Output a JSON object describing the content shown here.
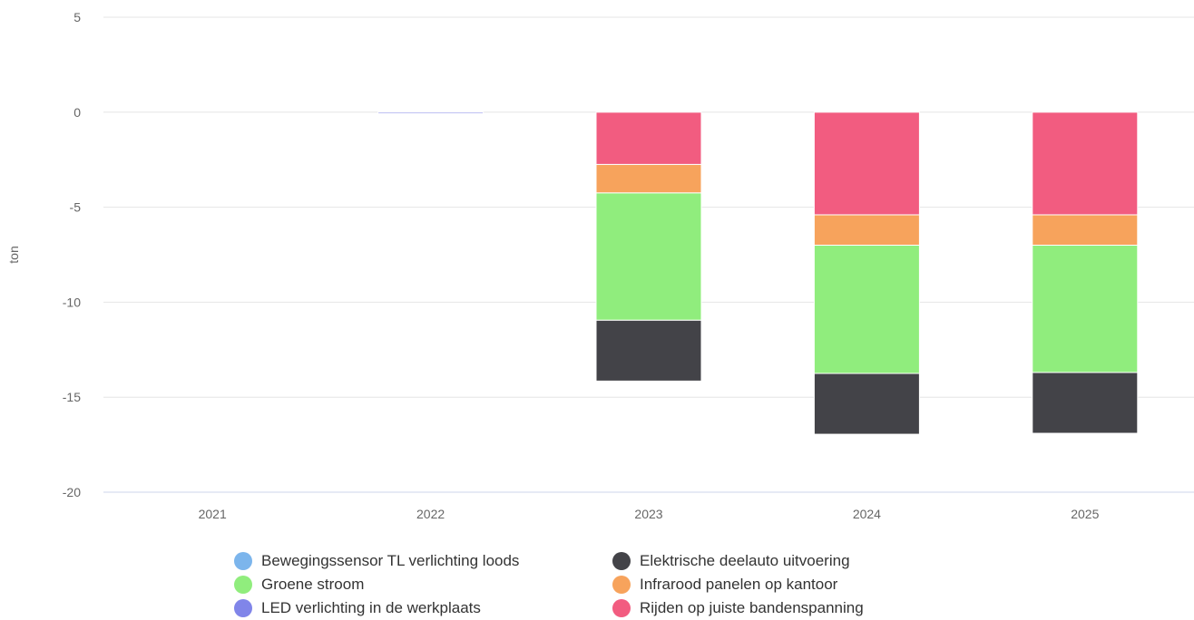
{
  "chart_data": {
    "type": "bar",
    "stacked": true,
    "ylabel": "ton",
    "ylim": [
      -20,
      5
    ],
    "yticks": [
      5,
      0,
      -5,
      -10,
      -15,
      -20
    ],
    "categories": [
      "2021",
      "2022",
      "2023",
      "2024",
      "2025"
    ],
    "grid": true,
    "legend_position": "bottom",
    "series": [
      {
        "name": "Rijden op juiste bandenspanning",
        "color": "#f25c80",
        "values": [
          0,
          0,
          -2.75,
          -5.4,
          -5.4
        ]
      },
      {
        "name": "Infrarood panelen op kantoor",
        "color": "#f7a35c",
        "values": [
          0,
          0,
          -1.5,
          -1.6,
          -1.6
        ]
      },
      {
        "name": "Groene stroom",
        "color": "#90ed7d",
        "values": [
          0,
          0,
          -6.7,
          -6.75,
          -6.7
        ]
      },
      {
        "name": "Elektrische deelauto uitvoering",
        "color": "#434348",
        "values": [
          0,
          0,
          -3.2,
          -3.2,
          -3.2
        ]
      },
      {
        "name": "LED verlichting in de werkplaats",
        "color": "#8085e9",
        "values": [
          0,
          -0.05,
          0,
          0,
          0
        ]
      },
      {
        "name": "Bewegingssensor TL verlichting loods",
        "color": "#7cb5ec",
        "values": [
          0,
          0,
          0,
          0,
          0
        ]
      }
    ]
  },
  "legend": {
    "items": [
      {
        "label": "Bewegingssensor TL verlichting loods",
        "color": "#7cb5ec"
      },
      {
        "label": "Elektrische deelauto uitvoering",
        "color": "#434348"
      },
      {
        "label": "Groene stroom",
        "color": "#90ed7d"
      },
      {
        "label": "Infrarood panelen op kantoor",
        "color": "#f7a35c"
      },
      {
        "label": "LED verlichting in de werkplaats",
        "color": "#8085e9"
      },
      {
        "label": "Rijden op juiste bandenspanning",
        "color": "#f25c80"
      }
    ]
  }
}
